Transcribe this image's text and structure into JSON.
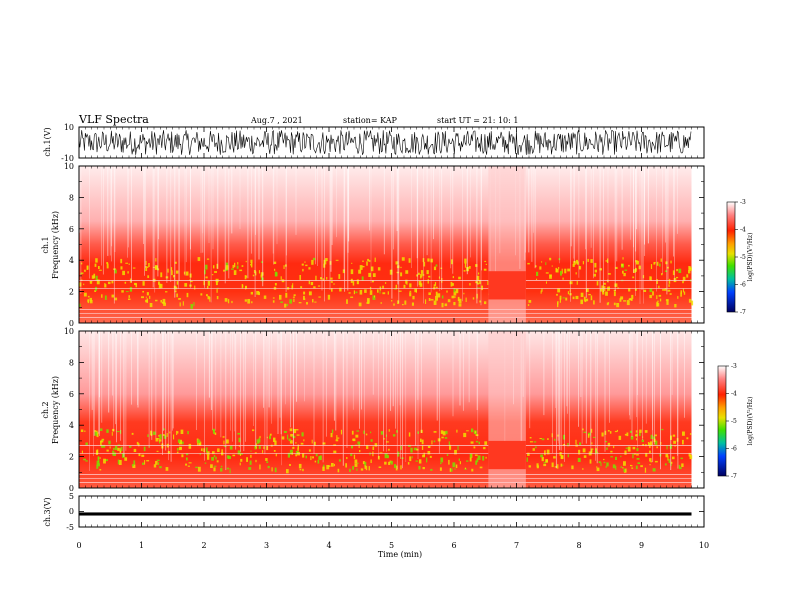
{
  "header": {
    "title": "VLF Spectra",
    "date": "Aug.7 , 2021",
    "station": "station= KAP",
    "start": "start  UT =   21: 10: 1"
  },
  "panels": {
    "ch1": {
      "ylabel": "ch.1(V)",
      "ymax": "10",
      "ymin": "-10"
    },
    "spec1": {
      "ylabel_a": "ch.1",
      "ylabel_b": "Frequency  (kHz)"
    },
    "spec2": {
      "ylabel_a": "ch.2",
      "ylabel_b": "Frequency  (kHz)"
    },
    "ch3": {
      "ylabel": "ch.3(V)",
      "ymax": "5",
      "ymid": "0",
      "ymin": "-5"
    }
  },
  "colorbar": {
    "label": "log(PSD)(V²/Hz)",
    "ticks": [
      "-3",
      "-4",
      "-5",
      "-6",
      "-7"
    ],
    "colors": [
      "#ffffff",
      "#ff8080",
      "#ff2000",
      "#ffa000",
      "#e8e000",
      "#40e000",
      "#00c0a0",
      "#0040ff",
      "#000060"
    ]
  },
  "chart_data": [
    {
      "type": "line",
      "name": "ch.1 waveform",
      "ylabel": "ch.1(V)",
      "ylim": [
        -10,
        10
      ],
      "xlim": [
        0,
        10
      ],
      "description_of_signal": "noise band roughly between -8 and 8 V across 0–9.8 min"
    },
    {
      "type": "heatmap",
      "ylabel": "Frequency  (kHz)",
      "xlim": [
        0,
        10
      ],
      "ylim": [
        0,
        10
      ],
      "yticks": [
        0,
        2,
        4,
        6,
        8,
        10
      ],
      "zlim": [
        -7,
        -3
      ],
      "data_end_min": 9.8,
      "gap_interval_min": [
        6.55,
        7.15
      ]
    },
    {
      "type": "heatmap",
      "ylabel": "Frequency  (kHz)",
      "xlim": [
        0,
        10
      ],
      "ylim": [
        0,
        10
      ],
      "yticks": [
        0,
        2,
        4,
        6,
        8,
        10
      ],
      "zlim": [
        -7,
        -3
      ],
      "data_end_min": 9.8,
      "gap_interval_min": [
        6.55,
        7.15
      ]
    },
    {
      "type": "line",
      "ylabel": "ch.3(V)",
      "ylim": [
        -5,
        5
      ],
      "yticks": [
        -5,
        0,
        5
      ],
      "xlim": [
        0,
        10
      ],
      "band": [
        -1.3,
        -0.3
      ]
    }
  ],
  "xaxis": {
    "label": "Time  (min)",
    "ticks": [
      "0",
      "1",
      "2",
      "3",
      "4",
      "5",
      "6",
      "7",
      "8",
      "9",
      "10"
    ]
  },
  "spec_ticks": [
    "0",
    "2",
    "4",
    "6",
    "8",
    "10"
  ]
}
